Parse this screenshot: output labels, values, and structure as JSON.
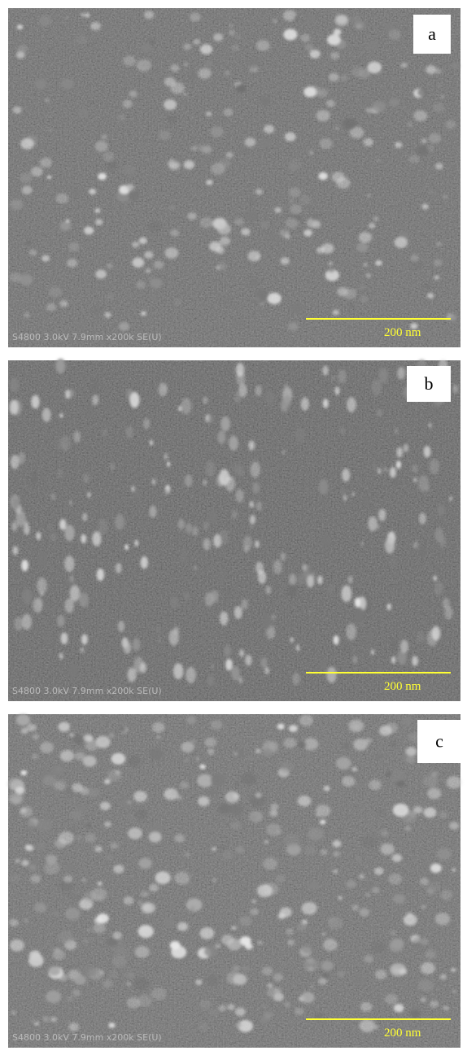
{
  "panels": [
    {
      "label": "a",
      "scale_bar": "200 nm",
      "info": "S4800 3.0kV 7.9mm x200k SE(U)"
    },
    {
      "label": "b",
      "scale_bar": "200 nm",
      "info": "S4800 3.0kV 7.9mm x200k SE(U)"
    },
    {
      "label": "c",
      "scale_bar": "200 nm",
      "info": "S4800 3.0kV 7.9mm x200k SE(U)"
    }
  ]
}
